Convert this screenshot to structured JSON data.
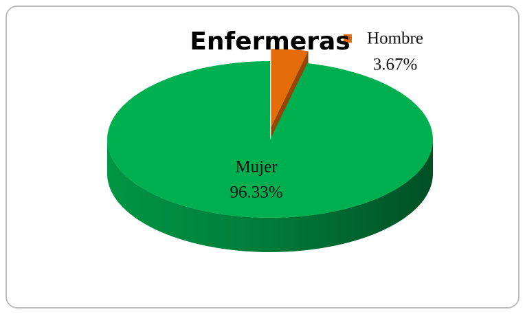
{
  "chart_data": {
    "type": "pie",
    "title": "Enfermeras",
    "categories": [
      "Hombre",
      "Mujer"
    ],
    "values": [
      3.67,
      96.33
    ],
    "value_labels": [
      "3.67%",
      "96.33%"
    ],
    "colors": [
      "#e46c0a",
      "#00b050"
    ]
  }
}
